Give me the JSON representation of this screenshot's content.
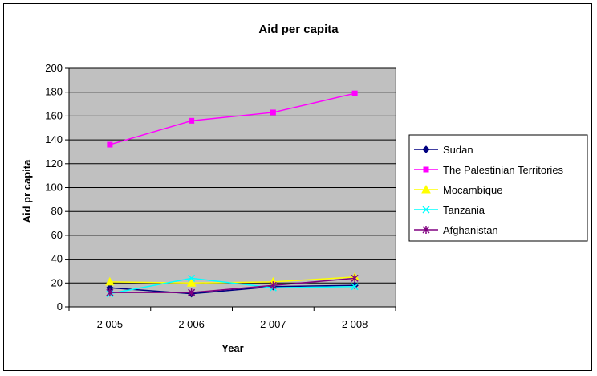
{
  "chart_data": {
    "type": "line",
    "title": "Aid per capita",
    "xlabel": "Year",
    "ylabel": "Aid pr capita",
    "categories": [
      "2 005",
      "2 006",
      "2 007",
      "2 008"
    ],
    "ylim": [
      0,
      200
    ],
    "yticks": [
      0,
      20,
      40,
      60,
      80,
      100,
      120,
      140,
      160,
      180,
      200
    ],
    "grid": true,
    "legend_position": "right",
    "plot_background": "#c0c0c0",
    "series": [
      {
        "name": "Sudan",
        "color": "#000080",
        "marker": "diamond",
        "values": [
          16,
          11,
          17,
          18
        ]
      },
      {
        "name": "The Palestinian Territories",
        "color": "#ff00ff",
        "marker": "square",
        "values": [
          136,
          156,
          163,
          179
        ]
      },
      {
        "name": "Mocambique",
        "color": "#ffff00",
        "marker": "triangle",
        "values": [
          21,
          20,
          21,
          25
        ]
      },
      {
        "name": "Tanzania",
        "color": "#00ffff",
        "marker": "x",
        "values": [
          11,
          24,
          16,
          17
        ]
      },
      {
        "name": "Afghanistan",
        "color": "#800080",
        "marker": "star",
        "values": [
          12,
          12,
          18,
          24
        ]
      }
    ]
  }
}
